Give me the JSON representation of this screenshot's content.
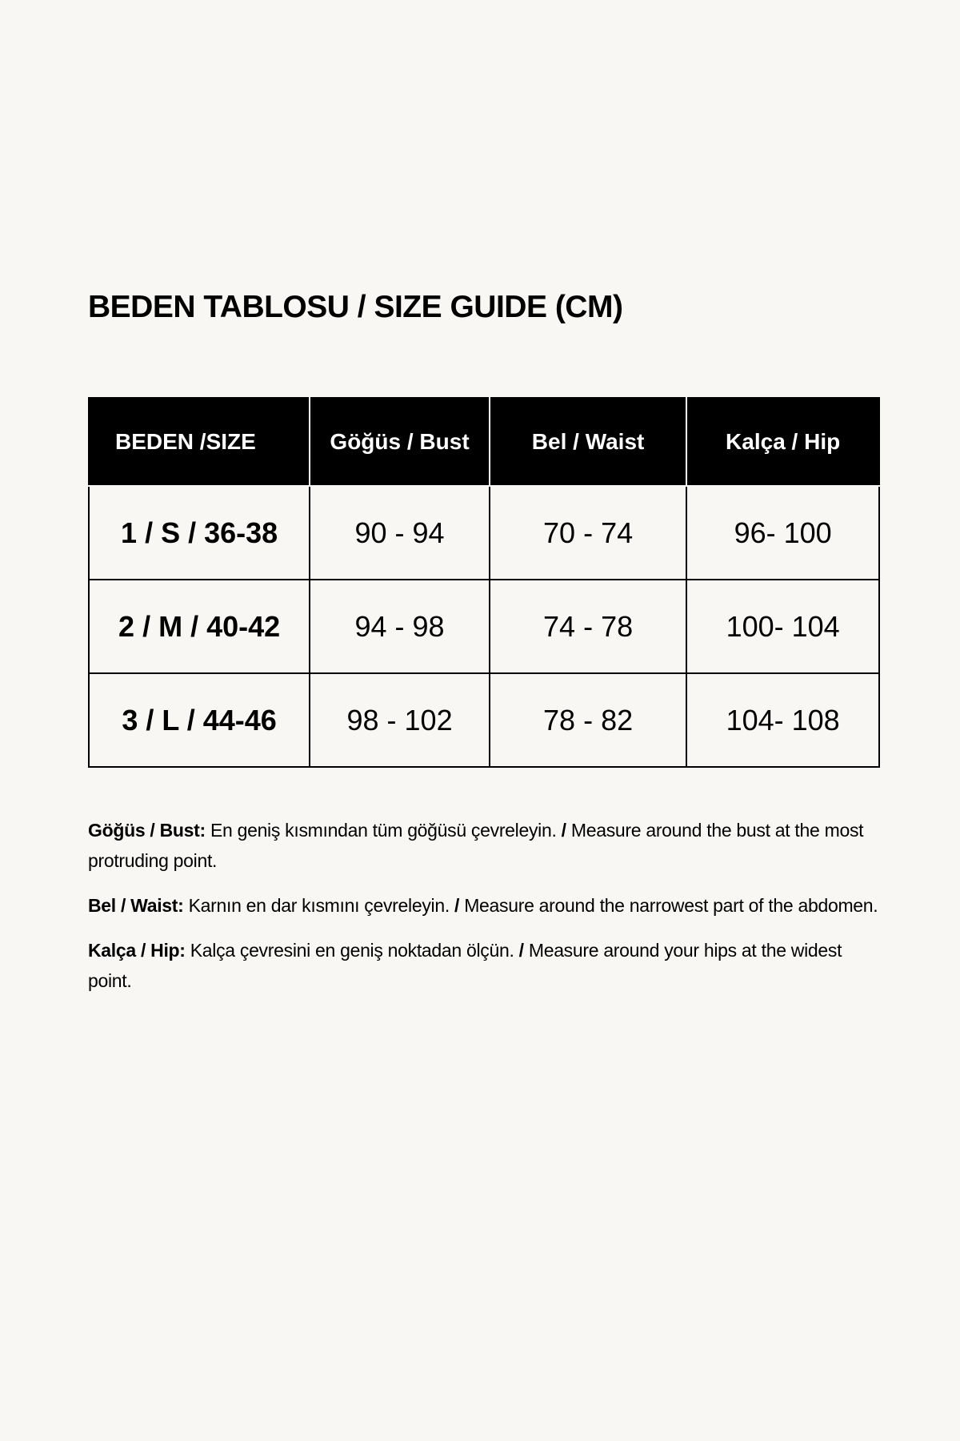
{
  "title": "BEDEN TABLOSU / SIZE GUIDE (CM)",
  "table": {
    "headers": [
      "BEDEN /SIZE",
      "Göğüs / Bust",
      "Bel / Waist",
      "Kalça / Hip"
    ],
    "rows": [
      [
        "1 / S / 36-38",
        "90 - 94",
        "70 - 74",
        "96- 100"
      ],
      [
        "2 / M / 40-42",
        "94 - 98",
        "74 - 78",
        "100- 104"
      ],
      [
        "3 / L / 44-46",
        "98 - 102",
        "78 - 82",
        "104- 108"
      ]
    ]
  },
  "notes": [
    {
      "label": "Göğüs / Bust:",
      "tr": " En geniş kısmından tüm göğüsü çevreleyin. ",
      "sep": "/",
      "en": " Measure around the bust at the most protruding point."
    },
    {
      "label": "Bel / Waist:",
      "tr": " Karnın en dar kısmını çevreleyin. ",
      "sep": "/",
      "en": " Measure around the narrowest part of the abdomen."
    },
    {
      "label": "Kalça / Hip:",
      "tr": " Kalça çevresini en geniş noktadan ölçün. ",
      "sep": "/",
      "en": " Measure around your hips at the widest point."
    }
  ]
}
